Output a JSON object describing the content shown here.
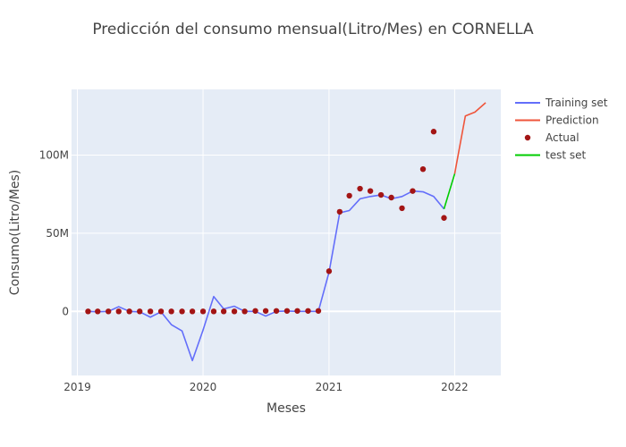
{
  "chart_data": {
    "type": "line",
    "title": "Predicción del consumo mensual(Litro/Mes) en CORNELLA",
    "xlabel": "Meses",
    "ylabel": "Consumo(Litro/Mes)",
    "x_tick_labels": [
      "2019",
      "2020",
      "2021",
      "2022"
    ],
    "y_tick_labels": [
      "0",
      "50M",
      "100M"
    ],
    "x_range": [
      "2018-12-15",
      "2022-05-15"
    ],
    "ylim": [
      -41000000,
      142000000
    ],
    "grid": true,
    "legend_position": "top-right",
    "series": [
      {
        "name": "Training set",
        "kind": "line",
        "color": "#636efa",
        "x": [
          "2019-02",
          "2019-03",
          "2019-04",
          "2019-05",
          "2019-06",
          "2019-07",
          "2019-08",
          "2019-09",
          "2019-10",
          "2019-11",
          "2019-12",
          "2020-01",
          "2020-02",
          "2020-03",
          "2020-04",
          "2020-05",
          "2020-06",
          "2020-07",
          "2020-08",
          "2020-09",
          "2020-10",
          "2020-11",
          "2020-12",
          "2021-01",
          "2021-02",
          "2021-03",
          "2021-04",
          "2021-05",
          "2021-06",
          "2021-07",
          "2021-08",
          "2021-09",
          "2021-10",
          "2021-11",
          "2021-12"
        ],
        "y": [
          0,
          -200000,
          0,
          3000000,
          0,
          -300000,
          -3700000,
          -300000,
          -8500000,
          -12500000,
          -31500000,
          -12000000,
          9500000,
          1600000,
          3300000,
          0,
          0,
          -3000000,
          0,
          200000,
          0,
          0,
          0,
          25000000,
          63000000,
          64500000,
          72000000,
          73500000,
          74500000,
          72000000,
          73500000,
          77000000,
          76500000,
          73500000,
          65500000
        ]
      },
      {
        "name": "Prediction",
        "kind": "line",
        "color": "#ef553b",
        "x": [
          "2022-01",
          "2022-02",
          "2022-03",
          "2022-04"
        ],
        "y": [
          88000000,
          125000000,
          127500000,
          133500000
        ]
      },
      {
        "name": "Actual",
        "kind": "markers",
        "color": "#a31515",
        "x": [
          "2019-02",
          "2019-03",
          "2019-04",
          "2019-05",
          "2019-06",
          "2019-07",
          "2019-08",
          "2019-09",
          "2019-10",
          "2019-11",
          "2019-12",
          "2020-01",
          "2020-02",
          "2020-03",
          "2020-04",
          "2020-05",
          "2020-06",
          "2020-07",
          "2020-08",
          "2020-09",
          "2020-10",
          "2020-11",
          "2020-12",
          "2021-01",
          "2021-02",
          "2021-03",
          "2021-04",
          "2021-05",
          "2021-06",
          "2021-07",
          "2021-08",
          "2021-09",
          "2021-10",
          "2021-11",
          "2021-12"
        ],
        "y": [
          0,
          0,
          0,
          0,
          0,
          0,
          0,
          0,
          0,
          0,
          0,
          0,
          0,
          0,
          0,
          0,
          300000,
          300000,
          300000,
          300000,
          300000,
          300000,
          300000,
          25700000,
          63700000,
          74000000,
          78500000,
          77000000,
          74500000,
          72800000,
          66000000,
          77000000,
          91000000,
          115000000,
          59800000
        ]
      },
      {
        "name": "test set",
        "kind": "line",
        "color": "#00cc00",
        "x": [
          "2021-12",
          "2022-01"
        ],
        "y": [
          65500000,
          88000000
        ]
      }
    ]
  }
}
